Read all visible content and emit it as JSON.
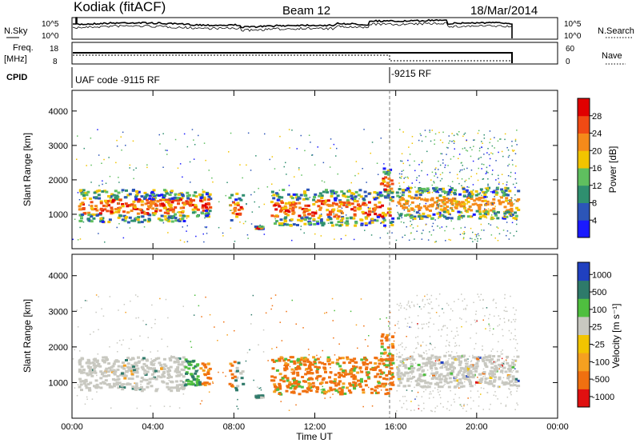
{
  "header": {
    "station": "Kodiak (fitACF)",
    "beam": "Beam 12",
    "date": "18/Mar/2014"
  },
  "strip_labels": {
    "nsky": "N.Sky",
    "nsky_ticks": [
      "10^5",
      "10^0"
    ],
    "nsearch": "N.Search",
    "nsearch_ticks": [
      "10^5",
      "10^0"
    ],
    "freq": "Freq.",
    "freq_unit": "[MHz]",
    "freq_ticks": [
      "18",
      "8"
    ],
    "nave": "Nave",
    "nave_ticks": [
      "60",
      "0"
    ],
    "cpid": "CPID",
    "cpid_mode1": "UAF code -9115 RF",
    "cpid_mode2": "-9215 RF"
  },
  "chart_data": [
    {
      "type": "heatmap",
      "ylabel": "Slant Range [km]",
      "xlabel": "",
      "y_ticks": [
        "1000",
        "2000",
        "3000",
        "4000"
      ],
      "ylim": [
        0,
        4600
      ],
      "xlim": [
        0,
        24
      ],
      "colorbar_label": "Power [dB]",
      "colorbar_ticks": [
        "4",
        "8",
        "12",
        "16",
        "20",
        "24",
        "28"
      ],
      "colorbar_range": [
        0,
        32
      ],
      "colors": [
        "#1a1aff",
        "#2c55b8",
        "#2f8f6f",
        "#5fbf5f",
        "#f2c400",
        "#f58a1a",
        "#f04a14",
        "#e00000"
      ]
    },
    {
      "type": "heatmap",
      "ylabel": "Slant Range [km]",
      "xlabel": "Time UT",
      "y_ticks": [
        "1000",
        "2000",
        "3000",
        "4000"
      ],
      "ylim": [
        0,
        4600
      ],
      "xlim": [
        0,
        24
      ],
      "colorbar_label": "Velocity  [m s⁻¹]",
      "colorbar_ticks": [
        "1000",
        "500",
        "100",
        "25",
        "-25",
        "-100",
        "-500",
        "-1000"
      ],
      "x_ticks": [
        "00:00",
        "04:00",
        "08:00",
        "12:00",
        "16:00",
        "20:00",
        "00:00"
      ],
      "colors": [
        "#2040c0",
        "#2e7a6a",
        "#4fbf3f",
        "#c8c8c0",
        "#f2c400",
        "#f5a020",
        "#f07010",
        "#e01010"
      ]
    }
  ]
}
